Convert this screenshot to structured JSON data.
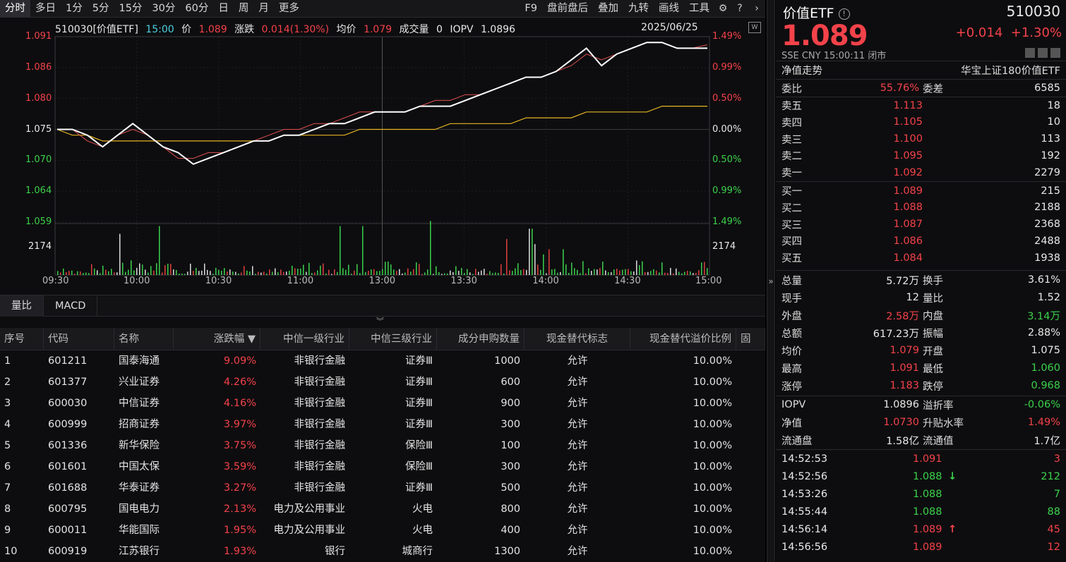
{
  "toolbar": {
    "left": [
      "分时",
      "多日",
      "1分",
      "5分",
      "15分",
      "30分",
      "60分",
      "日",
      "周",
      "月",
      "更多"
    ],
    "right": [
      "F9",
      "盘前盘后",
      "叠加",
      "九转",
      "画线",
      "工具"
    ],
    "active": 0
  },
  "header": {
    "code": "510030[价值ETF]",
    "time": "15:00",
    "price_label": "价",
    "price": "1.089",
    "chg_label": "涨跌",
    "chg": "0.014(1.30%)",
    "avg_label": "均价",
    "avg": "1.079",
    "vol_label": "成交量",
    "vol": "0",
    "iopv_label": "IOPV",
    "iopv": "1.0896",
    "date": "2025/06/25"
  },
  "chart_data": {
    "type": "line",
    "y_left": [
      "1.091",
      "1.086",
      "1.080",
      "1.075",
      "1.070",
      "1.064",
      "1.059"
    ],
    "y_right": [
      "1.49%",
      "0.99%",
      "0.50%",
      "0.00%",
      "0.50%",
      "0.99%",
      "1.49%"
    ],
    "y_range": [
      1.059,
      1.091
    ],
    "prev_close": 1.075,
    "x_ticks": [
      "09:30",
      "10:00",
      "10:30",
      "11:00",
      "13:00",
      "13:30",
      "14:00",
      "14:30",
      "15:00"
    ],
    "vol_label": "2174",
    "colors": {
      "price": "#ffffff",
      "iopv": "#e05050",
      "avg": "#e6b422"
    },
    "price_series": [
      1.075,
      1.075,
      1.074,
      1.072,
      1.074,
      1.076,
      1.074,
      1.072,
      1.071,
      1.069,
      1.07,
      1.071,
      1.072,
      1.073,
      1.073,
      1.074,
      1.074,
      1.075,
      1.076,
      1.076,
      1.077,
      1.078,
      1.078,
      1.078,
      1.079,
      1.079,
      1.079,
      1.08,
      1.081,
      1.082,
      1.083,
      1.084,
      1.084,
      1.085,
      1.087,
      1.089,
      1.086,
      1.088,
      1.089,
      1.09,
      1.09,
      1.089,
      1.089,
      1.089
    ],
    "iopv_series": [
      1.075,
      1.075,
      1.073,
      1.072,
      1.074,
      1.075,
      1.074,
      1.072,
      1.07,
      1.07,
      1.071,
      1.071,
      1.072,
      1.073,
      1.074,
      1.075,
      1.075,
      1.076,
      1.076,
      1.077,
      1.078,
      1.078,
      1.078,
      1.078,
      1.079,
      1.08,
      1.08,
      1.081,
      1.081,
      1.082,
      1.083,
      1.084,
      1.084,
      1.085,
      1.086,
      1.088,
      1.087,
      1.088,
      1.089,
      1.09,
      1.09,
      1.089,
      1.089,
      1.0896
    ],
    "avg_series": [
      1.075,
      1.074,
      1.074,
      1.073,
      1.073,
      1.073,
      1.073,
      1.073,
      1.073,
      1.073,
      1.073,
      1.073,
      1.073,
      1.073,
      1.073,
      1.074,
      1.074,
      1.074,
      1.074,
      1.074,
      1.075,
      1.075,
      1.075,
      1.075,
      1.075,
      1.075,
      1.076,
      1.076,
      1.076,
      1.076,
      1.076,
      1.077,
      1.077,
      1.077,
      1.077,
      1.078,
      1.078,
      1.078,
      1.078,
      1.078,
      1.079,
      1.079,
      1.079,
      1.079
    ]
  },
  "subtabs": [
    "量比",
    "MACD"
  ],
  "table": {
    "headers": [
      "序号",
      "代码",
      "名称",
      "涨跌幅 ▼",
      "中信一级行业",
      "中信三级行业",
      "成分申购数量",
      "现金替代标志",
      "现金替代溢价比例",
      "固"
    ],
    "rows": [
      [
        "1",
        "601211",
        "国泰海通",
        "9.09%",
        "非银行金融",
        "证券Ⅲ",
        "1000",
        "允许",
        "10.00%"
      ],
      [
        "2",
        "601377",
        "兴业证券",
        "4.26%",
        "非银行金融",
        "证券Ⅲ",
        "600",
        "允许",
        "10.00%"
      ],
      [
        "3",
        "600030",
        "中信证券",
        "4.16%",
        "非银行金融",
        "证券Ⅲ",
        "900",
        "允许",
        "10.00%"
      ],
      [
        "4",
        "600999",
        "招商证券",
        "3.97%",
        "非银行金融",
        "证券Ⅲ",
        "300",
        "允许",
        "10.00%"
      ],
      [
        "5",
        "601336",
        "新华保险",
        "3.75%",
        "非银行金融",
        "保险Ⅲ",
        "100",
        "允许",
        "10.00%"
      ],
      [
        "6",
        "601601",
        "中国太保",
        "3.59%",
        "非银行金融",
        "保险Ⅲ",
        "300",
        "允许",
        "10.00%"
      ],
      [
        "7",
        "601688",
        "华泰证券",
        "3.27%",
        "非银行金融",
        "证券Ⅲ",
        "500",
        "允许",
        "10.00%"
      ],
      [
        "8",
        "600795",
        "国电电力",
        "2.13%",
        "电力及公用事业",
        "火电",
        "800",
        "允许",
        "10.00%"
      ],
      [
        "9",
        "600011",
        "华能国际",
        "1.95%",
        "电力及公用事业",
        "火电",
        "400",
        "允许",
        "10.00%"
      ],
      [
        "10",
        "600919",
        "江苏银行",
        "1.93%",
        "银行",
        "城商行",
        "1300",
        "允许",
        "10.00%"
      ]
    ]
  },
  "quote": {
    "title": "价值ETF",
    "code": "510030",
    "price": "1.089",
    "chg": "+0.014",
    "chg_pct": "+1.30%",
    "meta": "SSE  CNY  15:00:11  闭市",
    "nav_label": "净值走势",
    "index_name": "华宝上证180价值ETF",
    "webi_label": "委比",
    "webi": "55.76%",
    "weicha_label": "委差",
    "weicha": "6585",
    "asks": [
      [
        "卖五",
        "1.113",
        "18"
      ],
      [
        "卖四",
        "1.105",
        "10"
      ],
      [
        "卖三",
        "1.100",
        "113"
      ],
      [
        "卖二",
        "1.095",
        "192"
      ],
      [
        "卖一",
        "1.092",
        "2279"
      ]
    ],
    "bids": [
      [
        "买一",
        "1.089",
        "215"
      ],
      [
        "买二",
        "1.088",
        "2188"
      ],
      [
        "买三",
        "1.087",
        "2368"
      ],
      [
        "买四",
        "1.086",
        "2488"
      ],
      [
        "买五",
        "1.084",
        "1938"
      ]
    ],
    "stats": [
      [
        [
          "总量",
          "5.72万",
          "white"
        ],
        [
          "换手",
          "3.61%",
          "white"
        ]
      ],
      [
        [
          "现手",
          "12",
          "white"
        ],
        [
          "量比",
          "1.52",
          "white"
        ]
      ],
      [
        [
          "外盘",
          "2.58万",
          "red"
        ],
        [
          "内盘",
          "3.14万",
          "green"
        ]
      ],
      [
        [
          "总额",
          "617.23万",
          "white"
        ],
        [
          "振幅",
          "2.88%",
          "white"
        ]
      ],
      [
        [
          "均价",
          "1.079",
          "red"
        ],
        [
          "开盘",
          "1.075",
          "white"
        ]
      ],
      [
        [
          "最高",
          "1.091",
          "red"
        ],
        [
          "最低",
          "1.060",
          "green"
        ]
      ],
      [
        [
          "涨停",
          "1.183",
          "red"
        ],
        [
          "跌停",
          "0.968",
          "green"
        ]
      ]
    ],
    "stats2": [
      [
        [
          "IOPV",
          "1.0896",
          "white"
        ],
        [
          "溢折率",
          "-0.06%",
          "green"
        ]
      ],
      [
        [
          "净值",
          "1.0730",
          "red"
        ],
        [
          "升贴水率",
          "1.49%",
          "red"
        ]
      ],
      [
        [
          "流通盘",
          "1.58亿",
          "white"
        ],
        [
          "流通值",
          "1.7亿",
          "white"
        ]
      ]
    ],
    "ticks": [
      [
        "14:52:53",
        "1.091",
        "",
        "3",
        "red"
      ],
      [
        "14:52:56",
        "1.088",
        "↓",
        "212",
        "green"
      ],
      [
        "14:53:26",
        "1.088",
        "",
        "7",
        "green"
      ],
      [
        "14:55:44",
        "1.088",
        "",
        "88",
        "green"
      ],
      [
        "14:56:14",
        "1.089",
        "↑",
        "45",
        "red"
      ],
      [
        "14:56:56",
        "1.089",
        "",
        "12",
        "red"
      ]
    ]
  }
}
